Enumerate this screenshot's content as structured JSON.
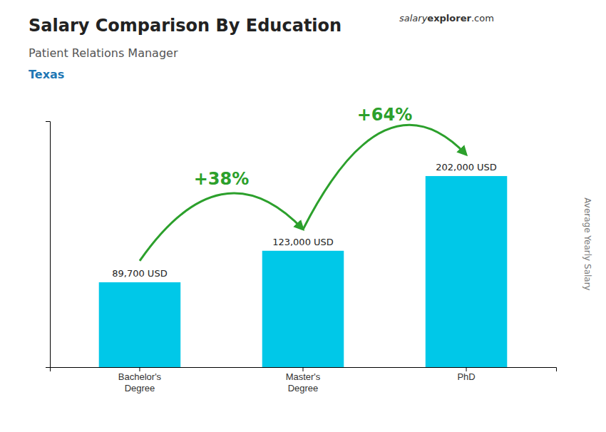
{
  "chart_data": {
    "type": "bar",
    "title": "Salary Comparison By Education",
    "subtitle": "Patient Relations Manager",
    "ylabel": "Average Yearly Salary",
    "categories": [
      "Bachelor's\nDegree",
      "Master's\nDegree",
      "PhD"
    ],
    "values": [
      89700,
      123000,
      202000
    ],
    "value_labels": [
      "89,700 USD",
      "123,000 USD",
      "202,000 USD"
    ],
    "data_labels": true,
    "color": "#00c8e8",
    "ylim": [
      0,
      260000
    ],
    "tick_labels": "x",
    "grid": false,
    "annotations": [
      {
        "text": "Texas"
      },
      {
        "text": "salary"
      },
      {
        "text": "explorer"
      },
      {
        "text": ".com"
      },
      {
        "text": "+38%",
        "from": "Bachelor's\nDegree",
        "to": "Master's\nDegree"
      },
      {
        "text": "+64%",
        "from": "Master's\nDegree",
        "to": "PhD"
      }
    ]
  }
}
